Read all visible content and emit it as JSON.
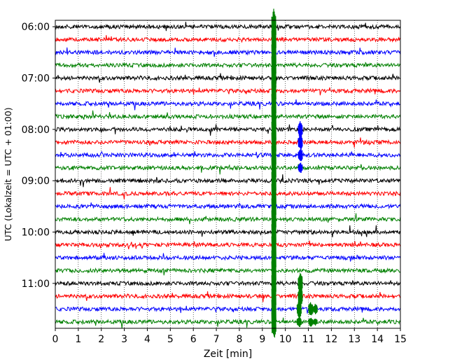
{
  "chart_data": {
    "type": "line",
    "title": "",
    "xlabel": "Zeit  [min]",
    "ylabel": "UTC (Lokalzeit = UTC + 01:00)",
    "xlim": [
      0,
      15
    ],
    "x_ticks": [
      "0",
      "1",
      "2",
      "3",
      "4",
      "5",
      "6",
      "7",
      "8",
      "9",
      "10",
      "11",
      "12",
      "13",
      "14",
      "15"
    ],
    "y_ticks": [
      "06:00",
      "07:00",
      "08:00",
      "09:00",
      "10:00",
      "11:00"
    ],
    "grid": "vertical dotted",
    "trace_minutes": 15,
    "traces_per_hour": 4,
    "colors": [
      "#000000",
      "#ff0000",
      "#0000ff",
      "#008000"
    ],
    "rows": [
      {
        "start": "06:00",
        "color": "#000000"
      },
      {
        "start": "06:15",
        "color": "#ff0000"
      },
      {
        "start": "06:30",
        "color": "#0000ff"
      },
      {
        "start": "06:45",
        "color": "#008000"
      },
      {
        "start": "07:00",
        "color": "#000000"
      },
      {
        "start": "07:15",
        "color": "#ff0000"
      },
      {
        "start": "07:30",
        "color": "#0000ff"
      },
      {
        "start": "07:45",
        "color": "#008000"
      },
      {
        "start": "08:00",
        "color": "#000000"
      },
      {
        "start": "08:15",
        "color": "#ff0000"
      },
      {
        "start": "08:30",
        "color": "#0000ff"
      },
      {
        "start": "08:45",
        "color": "#008000"
      },
      {
        "start": "09:00",
        "color": "#000000"
      },
      {
        "start": "09:15",
        "color": "#ff0000"
      },
      {
        "start": "09:30",
        "color": "#0000ff"
      },
      {
        "start": "09:45",
        "color": "#008000"
      },
      {
        "start": "10:00",
        "color": "#000000"
      },
      {
        "start": "10:15",
        "color": "#ff0000"
      },
      {
        "start": "10:30",
        "color": "#0000ff"
      },
      {
        "start": "10:45",
        "color": "#008000"
      },
      {
        "start": "11:00",
        "color": "#000000"
      },
      {
        "start": "11:15",
        "color": "#ff0000"
      },
      {
        "start": "11:30",
        "color": "#0000ff"
      },
      {
        "start": "11:45",
        "color": "#008000"
      }
    ],
    "events": [
      {
        "row": 0,
        "minute": 9.5,
        "amp": 3.2,
        "color": "#008000"
      },
      {
        "row": 1,
        "minute": 9.5,
        "amp": 3.2,
        "color": "#008000"
      },
      {
        "row": 2,
        "minute": 9.5,
        "amp": 3.2,
        "color": "#008000"
      },
      {
        "row": 3,
        "minute": 9.5,
        "amp": 3.2,
        "color": "#008000"
      },
      {
        "row": 4,
        "minute": 9.5,
        "amp": 3.2,
        "color": "#008000"
      },
      {
        "row": 5,
        "minute": 9.5,
        "amp": 3.2,
        "color": "#008000"
      },
      {
        "row": 6,
        "minute": 9.5,
        "amp": 3.2,
        "color": "#008000"
      },
      {
        "row": 7,
        "minute": 9.5,
        "amp": 3.2,
        "color": "#008000"
      },
      {
        "row": 8,
        "minute": 9.5,
        "amp": 3.2,
        "color": "#008000"
      },
      {
        "row": 9,
        "minute": 9.5,
        "amp": 3.2,
        "color": "#008000"
      },
      {
        "row": 10,
        "minute": 9.5,
        "amp": 3.2,
        "color": "#008000"
      },
      {
        "row": 11,
        "minute": 9.5,
        "amp": 3.2,
        "color": "#008000"
      },
      {
        "row": 12,
        "minute": 9.5,
        "amp": 3.2,
        "color": "#008000"
      },
      {
        "row": 13,
        "minute": 9.5,
        "amp": 3.2,
        "color": "#008000"
      },
      {
        "row": 14,
        "minute": 9.5,
        "amp": 3.2,
        "color": "#008000"
      },
      {
        "row": 15,
        "minute": 9.5,
        "amp": 3.2,
        "color": "#008000"
      },
      {
        "row": 16,
        "minute": 9.5,
        "amp": 3.2,
        "color": "#008000"
      },
      {
        "row": 17,
        "minute": 9.5,
        "amp": 3.2,
        "color": "#008000"
      },
      {
        "row": 18,
        "minute": 9.5,
        "amp": 3.2,
        "color": "#008000"
      },
      {
        "row": 19,
        "minute": 9.5,
        "amp": 3.2,
        "color": "#008000"
      },
      {
        "row": 20,
        "minute": 9.5,
        "amp": 3.2,
        "color": "#008000"
      },
      {
        "row": 21,
        "minute": 9.5,
        "amp": 3.2,
        "color": "#008000"
      },
      {
        "row": 22,
        "minute": 9.5,
        "amp": 3.2,
        "color": "#008000"
      },
      {
        "row": 23,
        "minute": 9.5,
        "amp": 3.2,
        "color": "#008000"
      },
      {
        "row": 8,
        "minute": 10.65,
        "amp": 1.4,
        "color": "#0000ff"
      },
      {
        "row": 9,
        "minute": 10.65,
        "amp": 1.4,
        "color": "#0000ff"
      },
      {
        "row": 10,
        "minute": 10.65,
        "amp": 1.2,
        "color": "#0000ff"
      },
      {
        "row": 11,
        "minute": 10.65,
        "amp": 0.9,
        "color": "#0000ff"
      },
      {
        "row": 20,
        "minute": 10.65,
        "amp": 1.8,
        "color": "#008000"
      },
      {
        "row": 21,
        "minute": 10.65,
        "amp": 1.8,
        "color": "#008000"
      },
      {
        "row": 22,
        "minute": 10.6,
        "amp": 1.6,
        "color": "#008000"
      },
      {
        "row": 23,
        "minute": 10.6,
        "amp": 1.0,
        "color": "#008000"
      },
      {
        "row": 22,
        "minute": 11.1,
        "amp": 1.2,
        "color": "#008000"
      },
      {
        "row": 23,
        "minute": 11.1,
        "amp": 0.8,
        "color": "#008000"
      },
      {
        "row": 22,
        "minute": 11.3,
        "amp": 0.9,
        "color": "#008000"
      },
      {
        "row": 23,
        "minute": 11.3,
        "amp": 0.6,
        "color": "#008000"
      }
    ]
  }
}
